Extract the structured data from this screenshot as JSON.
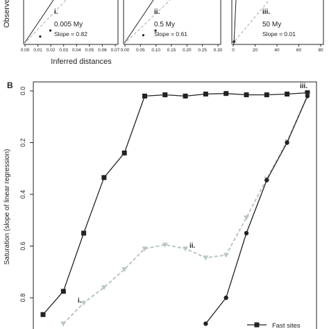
{
  "colors": {
    "axis": "#222222",
    "line": "#222222",
    "dashed": "#b8c8c0"
  },
  "chart_data": [
    {
      "type": "scatter",
      "panel": "i.",
      "label_value": "0.005 My",
      "slope_text": "Slope = 0.82",
      "ylabel": "Observed",
      "xticks": [
        "0.00",
        "0.01",
        "0.02",
        "0.03",
        "0.04",
        "0.05",
        "0.06",
        "0.07"
      ],
      "xlim": [
        0,
        0.07
      ],
      "points": [
        {
          "x": 0.012,
          "y": 0.008
        },
        {
          "x": 0.02,
          "y": 0.014
        }
      ]
    },
    {
      "type": "scatter",
      "panel": "ii.",
      "label_value": "0.5 My",
      "slope_text": "Slope = 0.61",
      "xticks": [
        "0.00",
        "0.05",
        "0.10",
        "0.15",
        "0.20",
        "0.25",
        "0.30"
      ],
      "xlim": [
        0,
        0.3
      ],
      "points": [
        {
          "x": 0.06,
          "y": 0.04
        },
        {
          "x": 0.1,
          "y": 0.06
        }
      ]
    },
    {
      "type": "scatter",
      "panel": "iii.",
      "label_value": "50 My",
      "slope_text": "Slope = 0.01",
      "xticks": [
        "0",
        "20",
        "40",
        "60",
        "80"
      ],
      "xlim": [
        0,
        80
      ],
      "points": [
        {
          "x": 0.5,
          "y": 0.3
        },
        {
          "x": 1,
          "y": 0.4
        }
      ]
    },
    {
      "type": "line",
      "panel_label": "B",
      "xlabel_panels": "Inferred distances",
      "ylabel": "Saturation (slope of linear regression)",
      "yticks": [
        "0.0",
        "0.2",
        "0.4",
        "0.6",
        "0.8"
      ],
      "ylim": [
        0,
        0.9
      ],
      "y_inverted": true,
      "annotations": [
        "i.",
        "ii.",
        "iii."
      ],
      "legend": {
        "position": "bottom-right",
        "entries": [
          "Fast sites"
        ]
      },
      "series": [
        {
          "name": "Fast sites",
          "style": "solid-square",
          "x": [
            1,
            2,
            3,
            4,
            5,
            6,
            7,
            8,
            9,
            10,
            11,
            12,
            13,
            14
          ],
          "y": [
            0.865,
            0.775,
            0.55,
            0.335,
            0.24,
            0.02,
            0.015,
            0.02,
            0.012,
            0.01,
            0.015,
            0.015,
            0.012,
            0.007
          ]
        },
        {
          "style": "dashed-triangle",
          "x": [
            2,
            3,
            4,
            5,
            6,
            7,
            8,
            9,
            10,
            11,
            12,
            13,
            14
          ],
          "y": [
            0.9,
            0.82,
            0.76,
            0.69,
            0.61,
            0.595,
            0.61,
            0.645,
            0.635,
            0.49,
            0.34,
            0.195,
            0.02
          ]
        },
        {
          "style": "solid-circle",
          "x": [
            9,
            10,
            11,
            12,
            13,
            14
          ],
          "y": [
            0.9,
            0.8,
            0.55,
            0.345,
            0.2,
            0.02
          ]
        }
      ]
    }
  ]
}
